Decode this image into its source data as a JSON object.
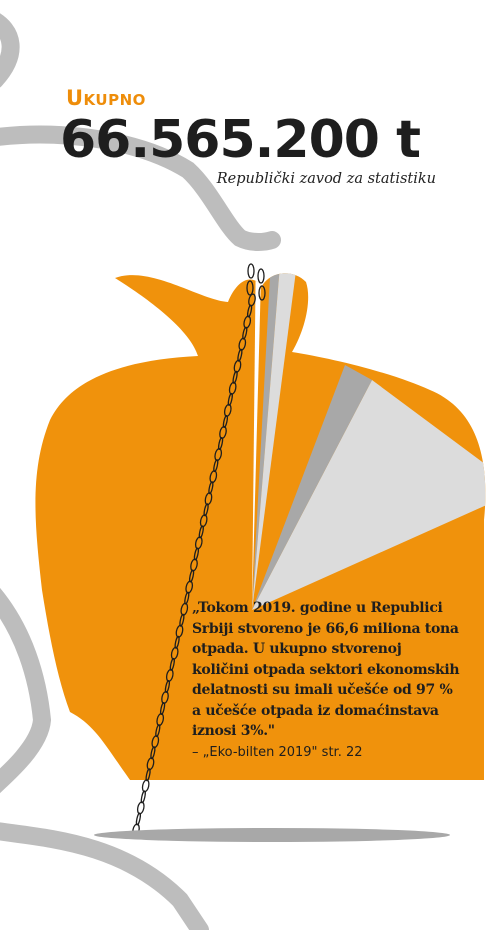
{
  "header": {
    "label": "Ukupno",
    "total": "66.565.200 t",
    "source": "Republički zavod za statistiku"
  },
  "quote": {
    "text": "„Tokom 2019. godine u Republici Srbiji stvoreno je 66,6 miliona tona otpada. U ukupno stvorenoj količini otpada sektori ekonomskih delatnosti su imali učešće od 97 % a učešće otpada iz domaćinstava iznosi 3%.\"",
    "citation": "– „Eko-bilten 2019\" str. 22"
  },
  "colors": {
    "orange": "#f0920c",
    "dark_gray": "#a8a8a8",
    "light_gray": "#dcdcdc",
    "text": "#1e1e1e"
  }
}
